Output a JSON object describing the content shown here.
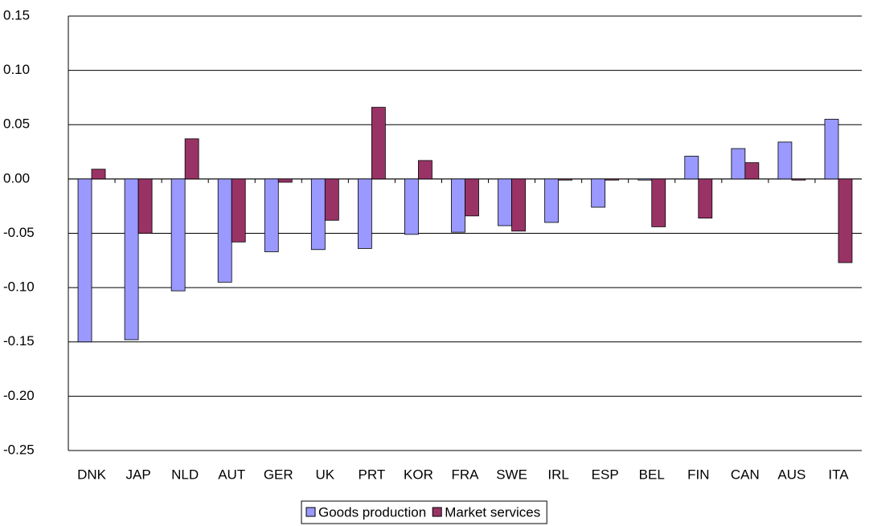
{
  "chart_data": {
    "type": "bar",
    "categories": [
      "DNK",
      "JAP",
      "NLD",
      "AUT",
      "GER",
      "UK",
      "PRT",
      "KOR",
      "FRA",
      "SWE",
      "IRL",
      "ESP",
      "BEL",
      "FIN",
      "CAN",
      "AUS",
      "ITA"
    ],
    "series": [
      {
        "name": "Goods production",
        "color": "#9999ff",
        "values": [
          -0.15,
          -0.148,
          -0.103,
          -0.095,
          -0.067,
          -0.065,
          -0.064,
          -0.051,
          -0.049,
          -0.043,
          -0.04,
          -0.026,
          -0.001,
          0.021,
          0.028,
          0.034,
          0.055
        ]
      },
      {
        "name": "Market services",
        "color": "#993366",
        "values": [
          0.009,
          -0.05,
          0.037,
          -0.058,
          -0.003,
          -0.038,
          0.066,
          0.017,
          -0.034,
          -0.048,
          -0.001,
          -0.001,
          -0.044,
          -0.036,
          0.015,
          -0.001,
          -0.077
        ]
      }
    ],
    "ylim": [
      -0.25,
      0.15
    ],
    "yticks": [
      0.15,
      {
        "value": 0.1,
        "label": "0.10"
      },
      0.05,
      {
        "value": 0,
        "label": "0.00"
      },
      -0.05,
      {
        "value": -0.1,
        "label": "-0.10"
      },
      -0.15,
      {
        "value": -0.2,
        "label": "-0.20"
      },
      -0.25
    ],
    "grid": true,
    "legend": "bottom"
  }
}
